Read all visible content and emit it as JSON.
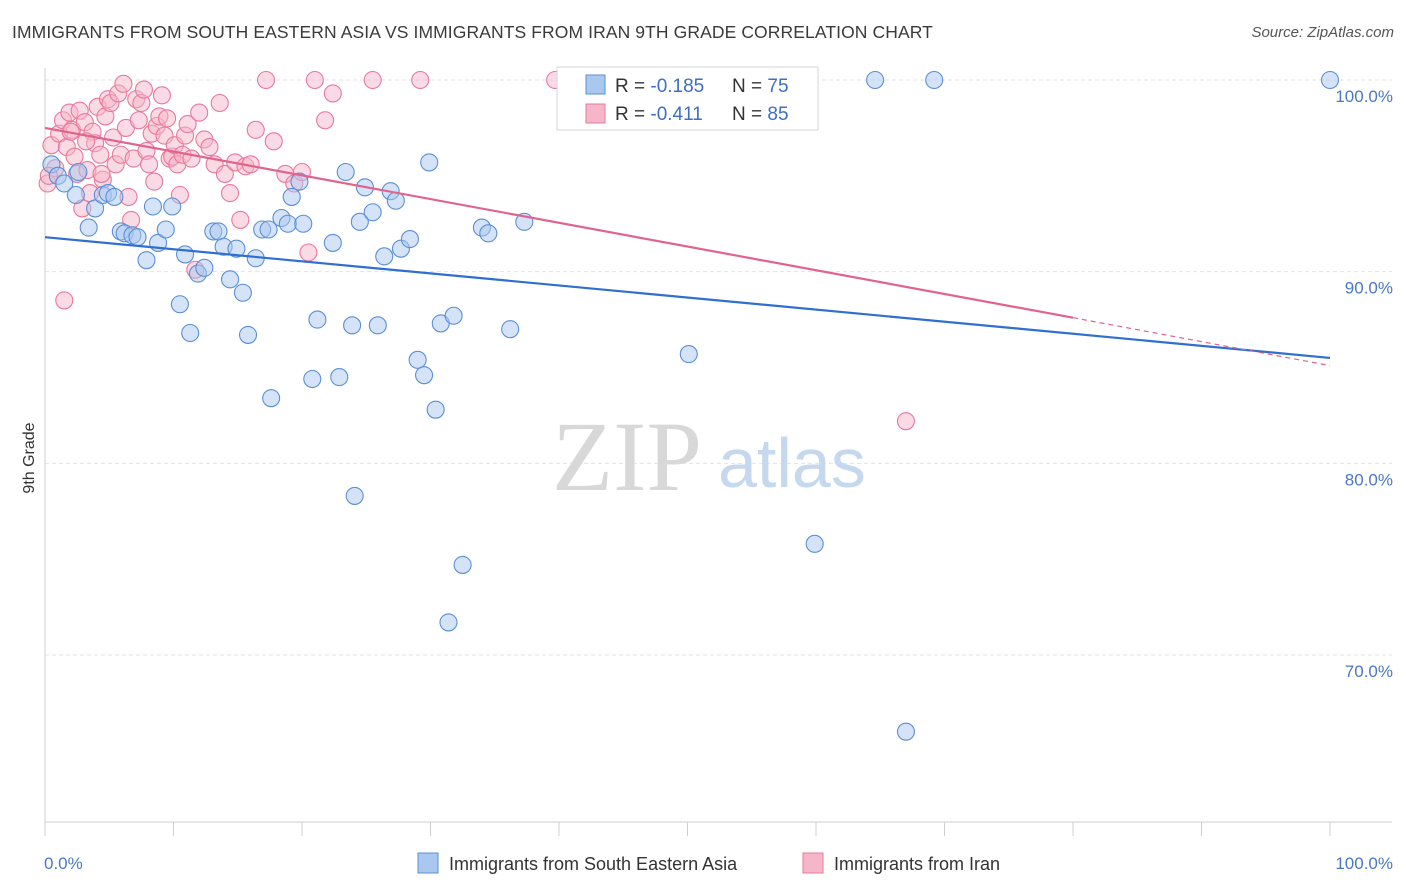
{
  "header": {
    "title": "IMMIGRANTS FROM SOUTH EASTERN ASIA VS IMMIGRANTS FROM IRAN 9TH GRADE CORRELATION CHART",
    "source": "Source: ZipAtlas.com"
  },
  "watermark": {
    "zip": "ZIP",
    "atlas": "atlas"
  },
  "colors": {
    "blue_fill": "#a9c8ef",
    "blue_stroke": "#5b8fd6",
    "blue_line": "#2e6fd0",
    "pink_fill": "#f6b6c9",
    "pink_stroke": "#e8799c",
    "pink_line": "#e0648d",
    "tick_text": "#4a78c2",
    "grid": "#e3e3e3"
  },
  "legend_box": {
    "rows": [
      {
        "r_label": "R = ",
        "r_value": "-0.185",
        "n_label": "N = ",
        "n_value": "75",
        "series": "blue"
      },
      {
        "r_label": "R = ",
        "r_value": "-0.411",
        "n_label": "N = ",
        "n_value": "85",
        "series": "pink"
      }
    ]
  },
  "chart_data": {
    "type": "scatter",
    "title": "IMMIGRANTS FROM SOUTH EASTERN ASIA VS IMMIGRANTS FROM IRAN 9TH GRADE CORRELATION CHART",
    "xlabel": "",
    "ylabel": "9th Grade",
    "xlim": [
      0,
      100
    ],
    "ylim": [
      60.5,
      101.5
    ],
    "x_ticks_labels": [
      "0.0%",
      "100.0%"
    ],
    "y_ticks": [
      70,
      80,
      90,
      100
    ],
    "y_tick_labels": [
      "70.0%",
      "80.0%",
      "90.0%",
      "100.0%"
    ],
    "grid": true,
    "legend_position": "bottom",
    "series": [
      {
        "name": "Immigrants from South Eastern Asia",
        "color": "#5b8fd6",
        "trend": {
          "x": [
            0,
            100
          ],
          "y": [
            91.8,
            85.5
          ],
          "dashed_from": null
        },
        "points": [
          [
            0.5,
            95.6
          ],
          [
            1.0,
            95.0
          ],
          [
            1.5,
            94.6
          ],
          [
            2.4,
            94.0
          ],
          [
            2.6,
            95.2
          ],
          [
            3.4,
            92.3
          ],
          [
            3.9,
            93.3
          ],
          [
            4.5,
            94.0
          ],
          [
            4.9,
            94.1
          ],
          [
            5.4,
            93.9
          ],
          [
            5.9,
            92.1
          ],
          [
            6.2,
            92.0
          ],
          [
            6.8,
            91.9
          ],
          [
            7.2,
            91.8
          ],
          [
            7.9,
            90.6
          ],
          [
            8.4,
            93.4
          ],
          [
            8.8,
            91.5
          ],
          [
            9.4,
            92.2
          ],
          [
            9.9,
            93.4
          ],
          [
            10.5,
            88.3
          ],
          [
            10.9,
            90.9
          ],
          [
            11.3,
            86.8
          ],
          [
            11.9,
            89.9
          ],
          [
            12.4,
            90.2
          ],
          [
            13.1,
            92.1
          ],
          [
            13.5,
            92.1
          ],
          [
            13.9,
            91.3
          ],
          [
            14.4,
            89.6
          ],
          [
            14.9,
            91.2
          ],
          [
            15.4,
            88.9
          ],
          [
            15.8,
            86.7
          ],
          [
            16.4,
            90.7
          ],
          [
            16.9,
            92.2
          ],
          [
            17.4,
            92.2
          ],
          [
            17.6,
            83.4
          ],
          [
            18.4,
            92.8
          ],
          [
            18.9,
            92.5
          ],
          [
            19.2,
            93.9
          ],
          [
            19.8,
            94.7
          ],
          [
            20.1,
            92.5
          ],
          [
            20.8,
            84.4
          ],
          [
            21.2,
            87.5
          ],
          [
            22.4,
            91.5
          ],
          [
            22.9,
            84.5
          ],
          [
            23.4,
            95.2
          ],
          [
            23.9,
            87.2
          ],
          [
            24.1,
            78.3
          ],
          [
            24.5,
            92.6
          ],
          [
            24.9,
            94.4
          ],
          [
            25.5,
            93.1
          ],
          [
            25.9,
            87.2
          ],
          [
            26.4,
            90.8
          ],
          [
            26.9,
            94.2
          ],
          [
            27.3,
            93.7
          ],
          [
            27.7,
            91.2
          ],
          [
            28.4,
            91.7
          ],
          [
            29.0,
            85.4
          ],
          [
            29.5,
            84.6
          ],
          [
            29.9,
            95.7
          ],
          [
            30.4,
            82.8
          ],
          [
            30.8,
            87.3
          ],
          [
            31.4,
            71.7
          ],
          [
            31.8,
            87.7
          ],
          [
            32.5,
            74.7
          ],
          [
            34.0,
            92.3
          ],
          [
            34.5,
            92.0
          ],
          [
            36.2,
            87.0
          ],
          [
            37.3,
            92.6
          ],
          [
            42.2,
            100.0
          ],
          [
            50.1,
            85.7
          ],
          [
            59.9,
            75.8
          ],
          [
            64.6,
            100.0
          ],
          [
            67.0,
            66.0
          ],
          [
            69.2,
            100.0
          ],
          [
            100.0,
            100.0
          ]
        ]
      },
      {
        "name": "Immigrants from Iran",
        "color": "#e8799c",
        "trend": {
          "x": [
            0,
            80,
            100
          ],
          "y": [
            97.5,
            87.6,
            85.1
          ],
          "dashed_from": 80
        },
        "points": [
          [
            0.2,
            94.6
          ],
          [
            0.5,
            96.6
          ],
          [
            0.8,
            95.4
          ],
          [
            1.1,
            97.2
          ],
          [
            1.4,
            97.9
          ],
          [
            1.5,
            88.5
          ],
          [
            1.7,
            96.5
          ],
          [
            1.9,
            98.3
          ],
          [
            2.1,
            97.4
          ],
          [
            2.3,
            96.0
          ],
          [
            2.5,
            95.1
          ],
          [
            2.7,
            98.4
          ],
          [
            2.9,
            93.3
          ],
          [
            3.1,
            97.8
          ],
          [
            3.3,
            95.3
          ],
          [
            3.5,
            94.1
          ],
          [
            3.7,
            97.3
          ],
          [
            3.9,
            96.7
          ],
          [
            4.1,
            98.6
          ],
          [
            4.3,
            96.1
          ],
          [
            4.5,
            94.8
          ],
          [
            4.7,
            98.1
          ],
          [
            4.9,
            99.0
          ],
          [
            5.1,
            98.8
          ],
          [
            5.3,
            97.0
          ],
          [
            5.5,
            95.6
          ],
          [
            5.7,
            99.3
          ],
          [
            5.9,
            96.1
          ],
          [
            6.1,
            99.8
          ],
          [
            6.3,
            97.5
          ],
          [
            6.5,
            93.9
          ],
          [
            6.7,
            92.7
          ],
          [
            6.9,
            95.9
          ],
          [
            7.1,
            99.0
          ],
          [
            7.3,
            97.9
          ],
          [
            7.5,
            98.8
          ],
          [
            7.7,
            99.5
          ],
          [
            7.9,
            96.3
          ],
          [
            8.1,
            95.6
          ],
          [
            8.3,
            97.2
          ],
          [
            8.5,
            94.7
          ],
          [
            8.7,
            97.6
          ],
          [
            8.9,
            98.1
          ],
          [
            9.1,
            99.2
          ],
          [
            9.3,
            97.1
          ],
          [
            9.5,
            98.0
          ],
          [
            9.7,
            95.9
          ],
          [
            9.9,
            96.0
          ],
          [
            10.1,
            96.6
          ],
          [
            10.3,
            95.6
          ],
          [
            10.5,
            94.0
          ],
          [
            10.7,
            96.1
          ],
          [
            10.9,
            97.1
          ],
          [
            11.1,
            97.7
          ],
          [
            11.4,
            95.9
          ],
          [
            11.7,
            90.1
          ],
          [
            12.0,
            98.3
          ],
          [
            12.4,
            96.9
          ],
          [
            12.8,
            96.5
          ],
          [
            13.2,
            95.6
          ],
          [
            13.6,
            98.8
          ],
          [
            14.0,
            95.1
          ],
          [
            14.4,
            94.1
          ],
          [
            14.8,
            95.7
          ],
          [
            15.2,
            92.7
          ],
          [
            15.6,
            95.5
          ],
          [
            16.0,
            95.6
          ],
          [
            16.4,
            97.4
          ],
          [
            17.2,
            100.0
          ],
          [
            17.8,
            96.8
          ],
          [
            18.7,
            95.1
          ],
          [
            19.4,
            94.6
          ],
          [
            20.0,
            95.2
          ],
          [
            20.5,
            91.0
          ],
          [
            21.0,
            100.0
          ],
          [
            21.8,
            97.9
          ],
          [
            22.4,
            99.3
          ],
          [
            25.5,
            100.0
          ],
          [
            29.2,
            100.0
          ],
          [
            39.7,
            100.0
          ],
          [
            67.0,
            82.2
          ],
          [
            0.3,
            95.0
          ],
          [
            2.0,
            97.3
          ],
          [
            3.2,
            96.8
          ],
          [
            4.4,
            95.1
          ]
        ]
      }
    ]
  }
}
